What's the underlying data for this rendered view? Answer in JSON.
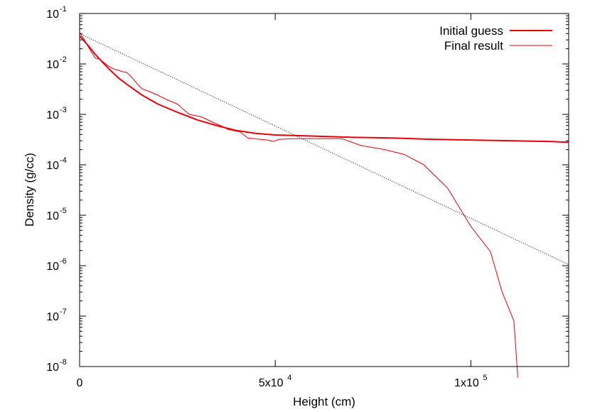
{
  "chart_data": {
    "type": "line",
    "title": "",
    "xlabel": "Height (cm)",
    "ylabel": "Density (g/cc)",
    "xlim": [
      0,
      125000
    ],
    "ylim": [
      1e-08,
      0.1
    ],
    "yscale": "log",
    "grid": false,
    "legend_position": "top-right",
    "x_ticks": [
      {
        "value": 0,
        "label": "0",
        "exp": ""
      },
      {
        "value": 50000,
        "label": "5x10",
        "exp": "4"
      },
      {
        "value": 100000,
        "label": "1x10",
        "exp": "5"
      }
    ],
    "y_ticks": [
      {
        "value": 1e-08,
        "label": "10",
        "exp": "-8"
      },
      {
        "value": 1e-07,
        "label": "10",
        "exp": "-7"
      },
      {
        "value": 1e-06,
        "label": "10",
        "exp": "-6"
      },
      {
        "value": 1e-05,
        "label": "10",
        "exp": "-5"
      },
      {
        "value": 0.0001,
        "label": "10",
        "exp": "-4"
      },
      {
        "value": 0.001,
        "label": "10",
        "exp": "-3"
      },
      {
        "value": 0.01,
        "label": "10",
        "exp": "-2"
      },
      {
        "value": 0.1,
        "label": "10",
        "exp": "-1"
      }
    ],
    "series": [
      {
        "name": "Initial guess",
        "color": "#e8000b",
        "width": 2,
        "dash": "",
        "points": [
          [
            0,
            0.036
          ],
          [
            2000,
            0.024
          ],
          [
            4000,
            0.0155
          ],
          [
            6000,
            0.0105
          ],
          [
            8000,
            0.0073
          ],
          [
            10000,
            0.0052
          ],
          [
            13000,
            0.0035
          ],
          [
            16000,
            0.0024
          ],
          [
            20000,
            0.0016
          ],
          [
            25000,
            0.0011
          ],
          [
            30000,
            0.00078
          ],
          [
            35000,
            0.0006
          ],
          [
            40000,
            0.00048
          ],
          [
            45000,
            0.00042
          ],
          [
            50000,
            0.00039
          ],
          [
            60000,
            0.00037
          ],
          [
            70000,
            0.00035
          ],
          [
            80000,
            0.00034
          ],
          [
            90000,
            0.00032
          ],
          [
            100000,
            0.00031
          ],
          [
            110000,
            0.0003
          ],
          [
            120000,
            0.00029
          ],
          [
            125000,
            0.00028
          ]
        ]
      },
      {
        "name": "Final result",
        "color": "#e8000b",
        "width": 1,
        "dash": "",
        "points": [
          [
            0,
            0.042
          ],
          [
            1000,
            0.032
          ],
          [
            2500,
            0.02
          ],
          [
            4000,
            0.013
          ],
          [
            5000,
            0.0125
          ],
          [
            6000,
            0.011
          ],
          [
            7000,
            0.0095
          ],
          [
            8000,
            0.0085
          ],
          [
            9000,
            0.0078
          ],
          [
            10000,
            0.0075
          ],
          [
            11000,
            0.007
          ],
          [
            12000,
            0.0068
          ],
          [
            13000,
            0.0058
          ],
          [
            14000,
            0.0047
          ],
          [
            15000,
            0.0038
          ],
          [
            16000,
            0.0032
          ],
          [
            17000,
            0.003
          ],
          [
            18000,
            0.0028
          ],
          [
            20000,
            0.0024
          ],
          [
            22000,
            0.002
          ],
          [
            25000,
            0.0016
          ],
          [
            28000,
            0.001
          ],
          [
            31000,
            0.0009
          ],
          [
            34000,
            0.0007
          ],
          [
            36000,
            0.0006
          ],
          [
            38000,
            0.0005
          ],
          [
            41000,
            0.00045
          ],
          [
            43000,
            0.00034
          ],
          [
            46000,
            0.00032
          ],
          [
            48000,
            0.00031
          ],
          [
            49500,
            0.00029
          ],
          [
            51000,
            0.00032
          ],
          [
            55000,
            0.00033
          ],
          [
            60000,
            0.00033
          ],
          [
            67000,
            0.00033
          ],
          [
            72000,
            0.00024
          ],
          [
            78000,
            0.0002
          ],
          [
            83000,
            0.00016
          ],
          [
            88000,
            0.0001
          ],
          [
            90000,
            7e-05
          ],
          [
            94000,
            3.5e-05
          ],
          [
            100000,
            6e-06
          ],
          [
            105000,
            1.9e-06
          ],
          [
            108000,
            3e-07
          ],
          [
            111000,
            8e-08
          ],
          [
            112000,
            6e-09
          ]
        ]
      },
      {
        "name": "",
        "color": "#000000",
        "width": 1,
        "dash": "1,2",
        "points": [
          [
            0,
            0.04
          ],
          [
            125000,
            1.05e-06
          ]
        ]
      }
    ]
  }
}
